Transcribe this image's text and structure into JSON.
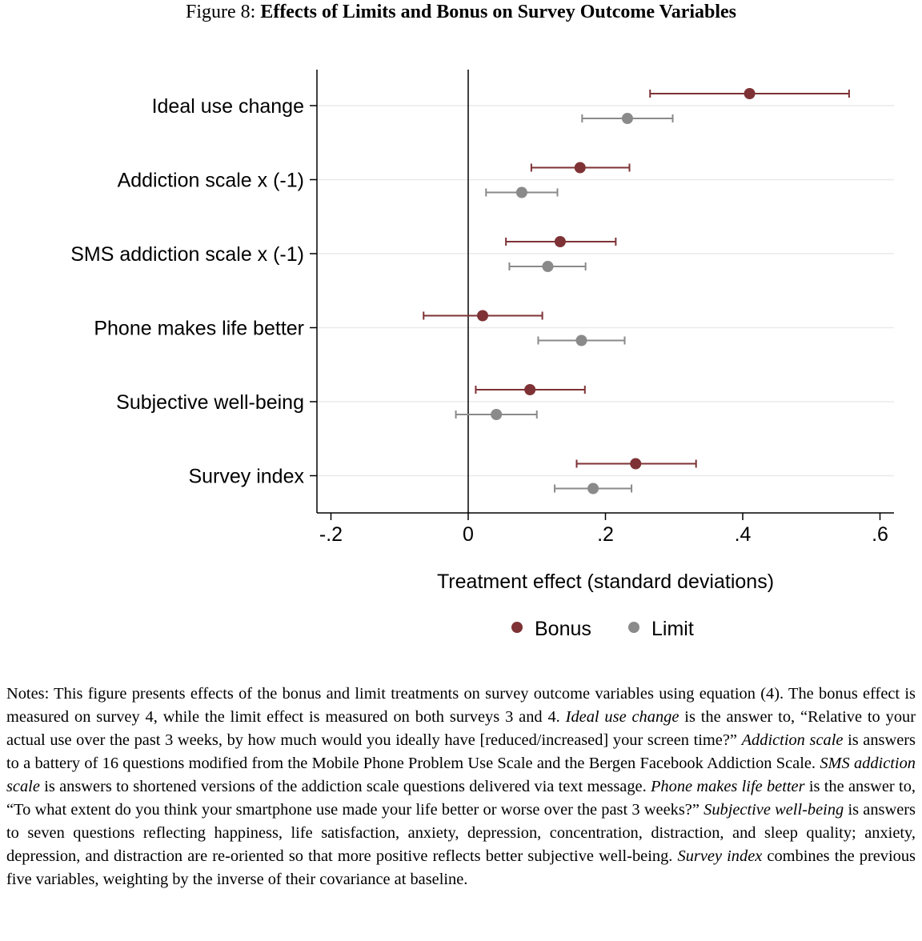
{
  "figure": {
    "label": "Figure 8:",
    "title": "Effects of Limits and Bonus on Survey Outcome Variables"
  },
  "colors": {
    "bonus": "#7e3235",
    "limit": "#8a8a8a",
    "grid": "#eaeaea",
    "axis": "#000000"
  },
  "chart_data": {
    "type": "scatter",
    "subtype": "coefficient-plot-with-confidence-intervals",
    "orientation": "horizontal",
    "categories": [
      "Ideal use change",
      "Addiction scale x (-1)",
      "SMS addiction scale x (-1)",
      "Phone makes life better",
      "Subjective well-being",
      "Survey index"
    ],
    "series": [
      {
        "name": "Bonus",
        "color": "#7e3235",
        "estimates": [
          0.41,
          0.163,
          0.134,
          0.021,
          0.09,
          0.244
        ],
        "ci_low": [
          0.265,
          0.092,
          0.055,
          -0.065,
          0.011,
          0.158
        ],
        "ci_high": [
          0.555,
          0.235,
          0.215,
          0.108,
          0.17,
          0.332
        ]
      },
      {
        "name": "Limit",
        "color": "#8a8a8a",
        "estimates": [
          0.232,
          0.078,
          0.116,
          0.165,
          0.041,
          0.182
        ],
        "ci_low": [
          0.166,
          0.026,
          0.06,
          0.102,
          -0.018,
          0.126
        ],
        "ci_high": [
          0.298,
          0.13,
          0.171,
          0.228,
          0.1,
          0.238
        ]
      }
    ],
    "xlabel": "Treatment effect (standard deviations)",
    "ylabel": "",
    "xlim": [
      -0.22,
      0.62
    ],
    "xticks": [
      -0.2,
      0,
      0.2,
      0.4,
      0.6
    ],
    "xtick_labels": [
      "-.2",
      "0",
      ".2",
      ".4",
      ".6"
    ],
    "reference_line_x": 0,
    "grid": "horizontal lines at categories",
    "legend": {
      "position": "bottom-center",
      "entries": [
        "Bonus",
        "Limit"
      ]
    }
  },
  "notes": {
    "p1": "Notes: This figure presents effects of the bonus and limit treatments on survey outcome variables using equation (4). The bonus effect is measured on survey 4, while the limit effect is measured on both surveys 3 and 4. ",
    "t1": "Ideal use change",
    "p2": " is the answer to, “Relative to your actual use over the past 3 weeks, by how much would you ideally have [reduced/increased] your screen time?” ",
    "t2": "Addiction scale",
    "p3": " is answers to a battery of 16 questions modified from the Mobile Phone Problem Use Scale and the Bergen Facebook Addiction Scale. ",
    "t3": "SMS addiction scale",
    "p4": " is answers to shortened versions of the addiction scale questions delivered via text message. ",
    "t4": "Phone makes life better",
    "p5": " is the answer to, “To what extent do you think your smartphone use made your life better or worse over the past 3 weeks?” ",
    "t5": "Subjective well-being",
    "p6": " is answers to seven questions reflecting happiness, life satisfaction, anxiety, depression, concentration, distraction, and sleep quality; anxiety, depression, and distraction are re-oriented so that more positive reflects better subjective well-being. ",
    "t6": "Survey index",
    "p7": " combines the previous five variables, weighting by the inverse of their covariance at baseline."
  }
}
